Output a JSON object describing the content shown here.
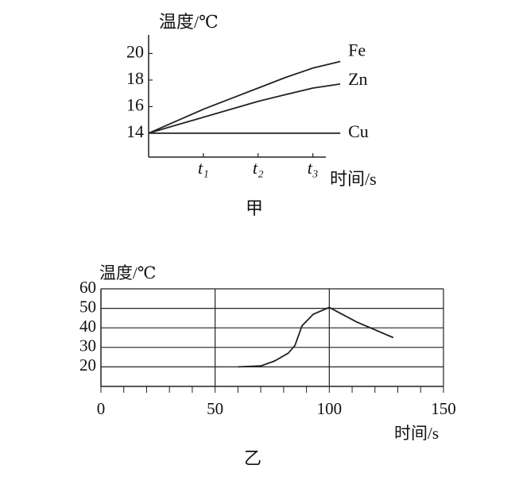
{
  "chart_data": [
    {
      "type": "line",
      "caption": "甲",
      "y_label": "温度/℃",
      "x_label": "时间/s",
      "ylim": [
        12.2,
        21.4
      ],
      "yticks": [
        14,
        16,
        18,
        20
      ],
      "xlim": [
        0,
        3.6
      ],
      "xticks": [
        {
          "value": 1,
          "label": "t₁"
        },
        {
          "value": 2,
          "label": "t₂"
        },
        {
          "value": 3,
          "label": "t₃"
        }
      ],
      "x": [
        0,
        0.5,
        1,
        1.5,
        2,
        2.5,
        3,
        3.5
      ],
      "series": [
        {
          "name": "Fe",
          "color": "#222",
          "values": [
            14,
            14.9,
            15.8,
            16.6,
            17.4,
            18.2,
            18.9,
            19.4
          ]
        },
        {
          "name": "Zn",
          "color": "#222",
          "values": [
            14,
            14.6,
            15.2,
            15.8,
            16.4,
            16.9,
            17.4,
            17.7
          ]
        },
        {
          "name": "Cu",
          "color": "#222",
          "values": [
            14,
            14,
            14,
            14,
            14,
            14,
            14,
            14
          ]
        }
      ],
      "grid": false
    },
    {
      "type": "line",
      "caption": "乙",
      "y_label": "温度/℃",
      "x_label": "时间/s",
      "ylim": [
        10,
        60
      ],
      "yticks": [
        20,
        30,
        40,
        50,
        60
      ],
      "xlim": [
        0,
        150
      ],
      "xticks": [
        0,
        50,
        100,
        150
      ],
      "x_minor_step": 10,
      "x": [
        60,
        70,
        76,
        82,
        85,
        88,
        93,
        100,
        112,
        128
      ],
      "series": [
        {
          "color": "#222",
          "values": [
            20,
            20.5,
            23,
            27,
            31,
            41,
            47,
            50.5,
            43,
            35
          ]
        }
      ],
      "grid": true
    }
  ]
}
